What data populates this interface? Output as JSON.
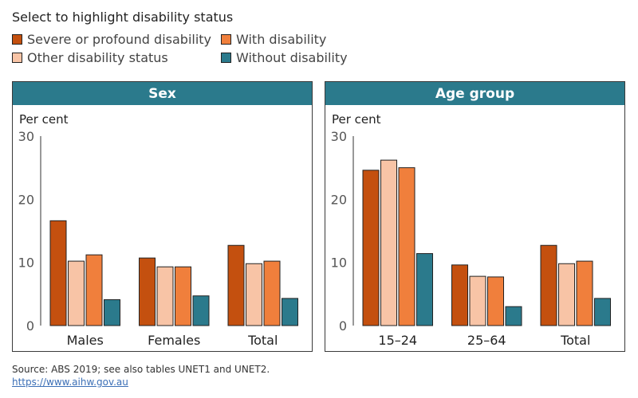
{
  "legend": {
    "title": "Select to highlight disability status",
    "items": [
      {
        "label": "Severe or profound disability",
        "color": "#c4500f"
      },
      {
        "label": "With disability",
        "color": "#f07f3c"
      },
      {
        "label": "Other disability status",
        "color": "#f8c4a6"
      },
      {
        "label": "Without disability",
        "color": "#2b7a8c"
      }
    ]
  },
  "header_color": "#2b7a8c",
  "chart_data": [
    {
      "type": "bar",
      "title": "Sex",
      "ylabel": "Per cent",
      "ylim": [
        0,
        30
      ],
      "yticks": [
        0,
        10,
        20,
        30
      ],
      "categories": [
        "Males",
        "Females",
        "Total"
      ],
      "series": [
        {
          "name": "Severe or profound disability",
          "color": "#c4500f",
          "values": [
            16.6,
            10.7,
            12.7
          ]
        },
        {
          "name": "Other disability status",
          "color": "#f8c4a6",
          "values": [
            10.2,
            9.3,
            9.8
          ]
        },
        {
          "name": "With disability",
          "color": "#f07f3c",
          "values": [
            11.2,
            9.3,
            10.2
          ]
        },
        {
          "name": "Without disability",
          "color": "#2b7a8c",
          "values": [
            4.1,
            4.7,
            4.3
          ]
        }
      ]
    },
    {
      "type": "bar",
      "title": "Age group",
      "ylabel": "Per cent",
      "ylim": [
        0,
        30
      ],
      "yticks": [
        0,
        10,
        20,
        30
      ],
      "categories": [
        "15–24",
        "25–64",
        "Total"
      ],
      "series": [
        {
          "name": "Severe or profound disability",
          "color": "#c4500f",
          "values": [
            24.6,
            9.6,
            12.7
          ]
        },
        {
          "name": "Other disability status",
          "color": "#f8c4a6",
          "values": [
            26.2,
            7.8,
            9.8
          ]
        },
        {
          "name": "With disability",
          "color": "#f07f3c",
          "values": [
            25.0,
            7.7,
            10.2
          ]
        },
        {
          "name": "Without disability",
          "color": "#2b7a8c",
          "values": [
            11.4,
            3.0,
            4.3
          ]
        }
      ]
    }
  ],
  "footer": {
    "source": "Source: ABS 2019; see also tables UNET1 and UNET2.",
    "link": "https://www.aihw.gov.au"
  }
}
